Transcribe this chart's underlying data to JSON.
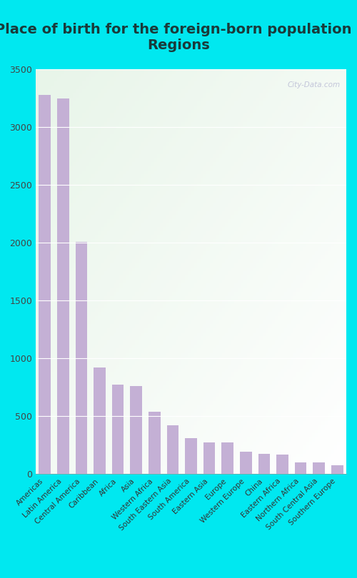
{
  "title": "Place of birth for the foreign-born population -\nRegions",
  "categories": [
    "Americas",
    "Latin America",
    "Central America",
    "Caribbean",
    "Africa",
    "Asia",
    "Western Africa",
    "South Eastern Asia",
    "South America",
    "Eastern Asia",
    "Europe",
    "Western Europe",
    "China",
    "Eastern Africa",
    "Northern Africa",
    "South Central Asia",
    "Southern Europe"
  ],
  "values": [
    3280,
    3250,
    2010,
    920,
    770,
    760,
    540,
    420,
    310,
    275,
    270,
    195,
    175,
    170,
    100,
    100,
    75
  ],
  "bar_color": "#c4b0d5",
  "bg_outer": "#00e8f0",
  "bg_plot_top_left": "#e8f5e9",
  "bg_plot_bottom_right": "#ffffff",
  "grid_color": "#ffffff",
  "ylim": [
    0,
    3500
  ],
  "yticks": [
    0,
    500,
    1000,
    1500,
    2000,
    2500,
    3000,
    3500
  ],
  "watermark": "City-Data.com",
  "title_fontsize": 14,
  "title_color": "#1a3a3a",
  "tick_fontsize": 7.5
}
